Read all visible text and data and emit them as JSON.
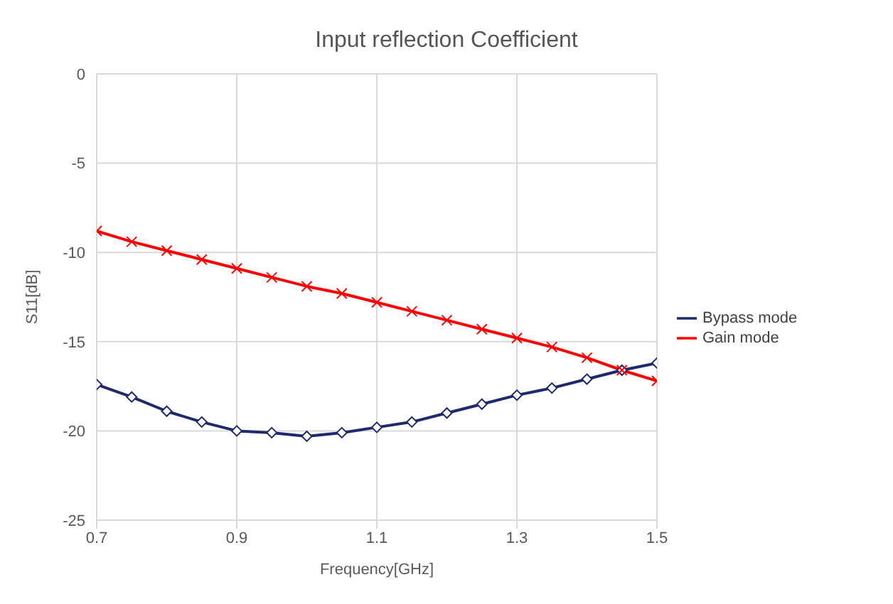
{
  "chart_data": {
    "type": "line",
    "title": "Input reflection Coefficient",
    "xlabel": "Frequency[GHz]",
    "ylabel": "S11[dB]",
    "x": [
      0.7,
      0.75,
      0.8,
      0.85,
      0.9,
      0.95,
      1.0,
      1.05,
      1.1,
      1.15,
      1.2,
      1.25,
      1.3,
      1.35,
      1.4,
      1.45,
      1.5
    ],
    "series": [
      {
        "name": "Bypass mode",
        "color": "#1f2a6e",
        "marker": "diamond",
        "values": [
          -17.4,
          -18.1,
          -18.9,
          -19.5,
          -20.0,
          -20.1,
          -20.3,
          -20.1,
          -19.8,
          -19.5,
          -19.0,
          -18.5,
          -18.0,
          -17.6,
          -17.1,
          -16.6,
          -16.2
        ]
      },
      {
        "name": "Gain mode",
        "color": "#ff0000",
        "marker": "cross",
        "values": [
          -8.8,
          -9.4,
          -9.9,
          -10.4,
          -10.9,
          -11.4,
          -11.9,
          -12.3,
          -12.8,
          -13.3,
          -13.8,
          -14.3,
          -14.8,
          -15.3,
          -15.9,
          -16.6,
          -17.2
        ]
      }
    ],
    "xlim": [
      0.7,
      1.5
    ],
    "xticks": [
      0.7,
      0.9,
      1.1,
      1.3,
      1.5
    ],
    "ylim": [
      -25,
      0
    ],
    "yticks": [
      -25,
      -20,
      -15,
      -10,
      -5,
      0
    ],
    "grid": true,
    "legend": "right",
    "line_style": "solid"
  }
}
